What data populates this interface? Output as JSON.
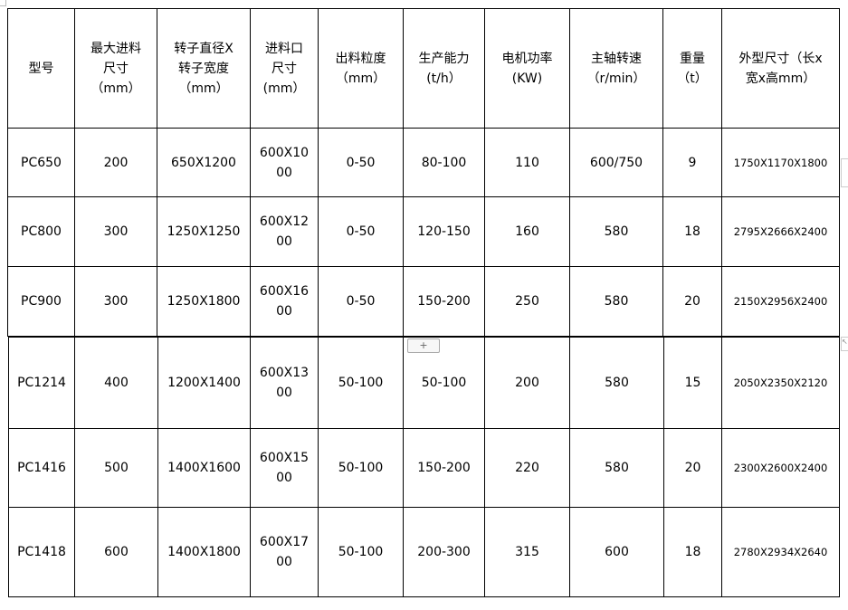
{
  "headers": [
    "型号",
    "最大进料\n尺寸\n（mm）",
    "转子直径X\n转子宽度\n（mm）",
    "进料口\n尺寸\n(mm）",
    "出料粒度\n（mm）",
    "生产能力\n(t/h）",
    "电机功率\n(KW)",
    "主轴转速\n（r/min）",
    "重量\n（t）",
    "外型尺寸（长x\n宽x高mm）"
  ],
  "rows": [
    [
      "PC650",
      "200",
      "650X1200",
      "600X10\n00",
      "0-50",
      "80-100",
      "110",
      "600/750",
      "9",
      "1750X1170X1800"
    ],
    [
      "PC800",
      "300",
      "1250X1250",
      "600X12\n00",
      "0-50",
      "120-150",
      "160",
      "580",
      "18",
      "2795X2666X2400"
    ],
    [
      "PC900",
      "300",
      "1250X1800",
      "600X16\n00",
      "0-50",
      "150-200",
      "250",
      "580",
      "20",
      "2150X2956X2400"
    ],
    [
      "PC1214",
      "400",
      "1200X1400",
      "600X13\n00",
      "50-100",
      "50-100",
      "200",
      "580",
      "15",
      "2050X2350X2120"
    ],
    [
      "PC1416",
      "500",
      "1400X1600",
      "600X15\n00",
      "50-100",
      "150-200",
      "220",
      "580",
      "20",
      "2300X2600X2400"
    ],
    [
      "PC1418",
      "600",
      "1400X1800",
      "600X17\n00",
      "50-100",
      "200-300",
      "315",
      "600",
      "18",
      "2780X2934X2640"
    ]
  ],
  "insert_row_label": "+"
}
